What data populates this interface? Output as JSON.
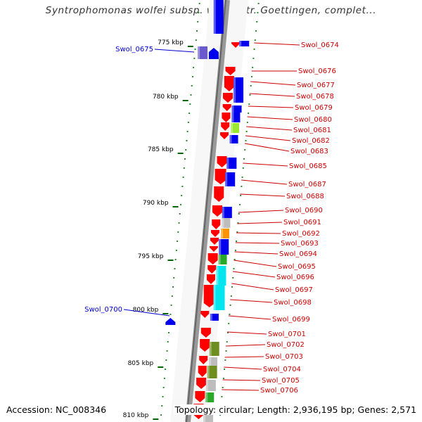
{
  "title": "Syntrophomonas wolfei subsp. wolfei str. Goettingen, complet...",
  "footer": {
    "accession": "Accession: NC_008346",
    "info": "Topology: circular; Length: 2,936,195 bp; Genes: 2,571"
  },
  "colors": {
    "red": "#ff0000",
    "blue": "#0000ee",
    "cyan": "#00e5ee",
    "green": "#2aa82a",
    "lime": "#9be830",
    "olive": "#6e8e22",
    "gray": "#bdbdbd",
    "orange": "#ff9400",
    "purple": "#6a5acd",
    "left_label": "#0000cc",
    "right_label": "#cc0000",
    "tick": "#006400"
  },
  "scale_labels": [
    "775 kbp",
    "780 kbp",
    "785 kbp",
    "790 kbp",
    "795 kbp",
    "800 kbp",
    "805 kbp",
    "810 kbp"
  ],
  "left_labels": [
    "Swol_0675",
    "Swol_0700"
  ],
  "right_labels": [
    "Swol_0674",
    "Swol_0676",
    "Swol_0677",
    "Swol_0678",
    "Swol_0679",
    "Swol_0680",
    "Swol_0681",
    "Swol_0682",
    "Swol_0683",
    "Swol_0685",
    "Swol_0687",
    "Swol_0688",
    "Swol_0690",
    "Swol_0691",
    "Swol_0692",
    "Swol_0693",
    "Swol_0694",
    "Swol_0695",
    "Swol_0696",
    "Swol_0697",
    "Swol_0698",
    "Swol_0699",
    "Swol_0701",
    "Swol_0702",
    "Swol_0703",
    "Swol_0704",
    "Swol_0705",
    "Swol_0706"
  ]
}
